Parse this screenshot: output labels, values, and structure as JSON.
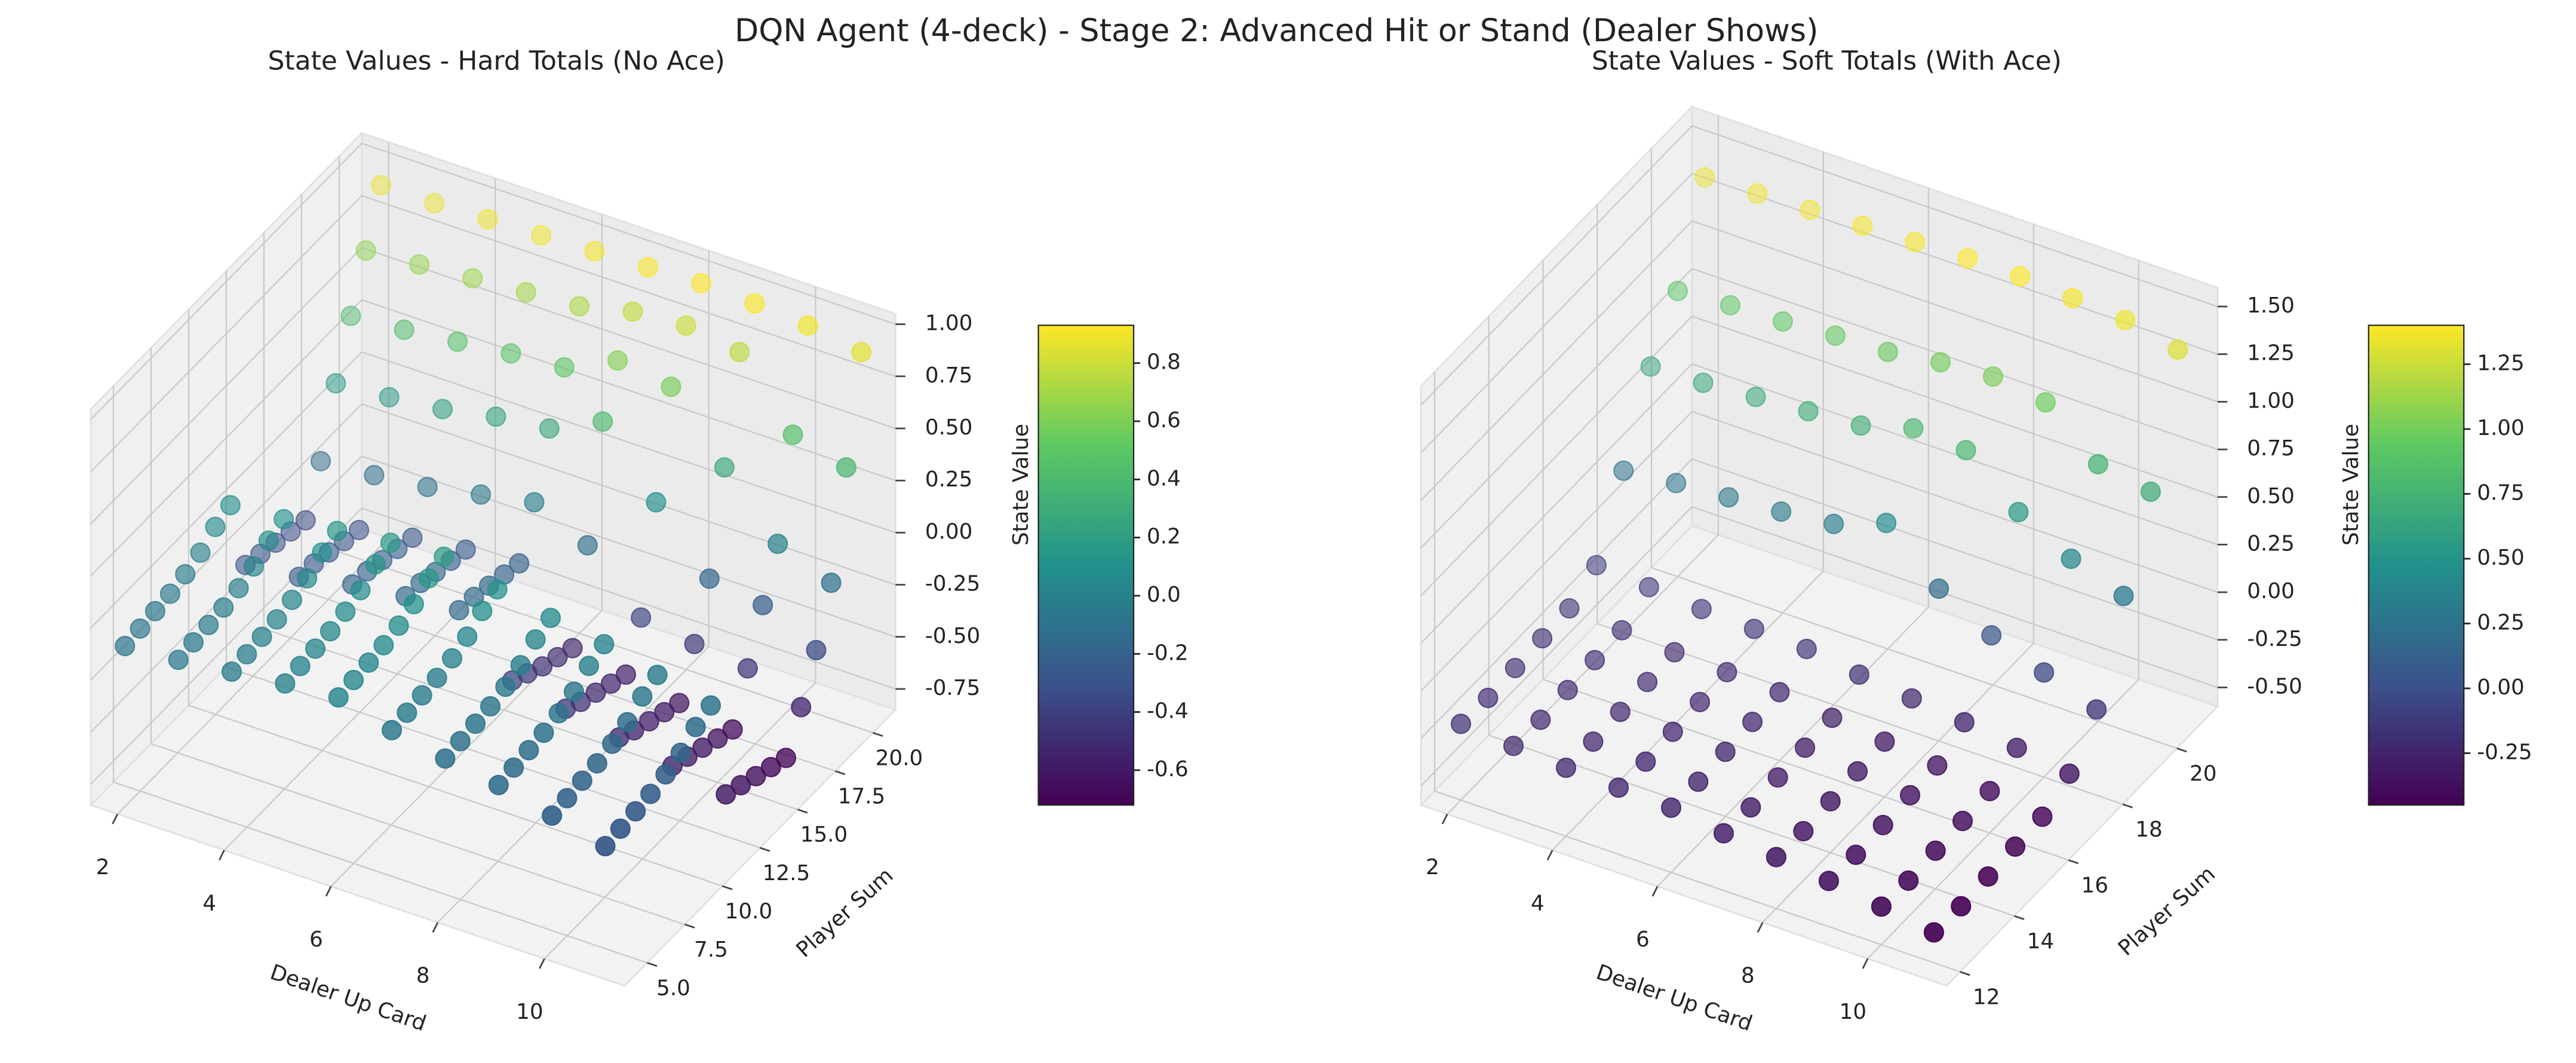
{
  "title": "DQN Agent (4-deck) - Stage 2: Advanced Hit or Stand (Dealer Shows)",
  "chart_data": [
    {
      "type": "scatter3d",
      "title": "State Values - Hard Totals (No Ace)",
      "xlabel": "Dealer Up Card",
      "ylabel": "Player Sum",
      "zlabel": "State Value",
      "colormap": "viridis",
      "clim": [
        -0.72,
        0.93
      ],
      "cticks": [
        -0.6,
        -0.4,
        -0.2,
        {
          "value": 0,
          "label": "0.0"
        },
        0.2,
        0.4,
        0.6,
        0.8
      ],
      "x": [
        2,
        3,
        4,
        5,
        6,
        7,
        8,
        9,
        10,
        11
      ],
      "y": [
        4,
        5,
        6,
        7,
        8,
        9,
        10,
        11,
        12,
        13,
        14,
        15,
        16,
        17,
        18,
        19,
        20,
        21
      ],
      "values": [
        [
          -0.08,
          -0.06,
          -0.03,
          0.0,
          0.02,
          -0.05,
          -0.1,
          -0.14,
          -0.2,
          -0.26
        ],
        [
          -0.07,
          -0.05,
          -0.02,
          0.01,
          0.03,
          -0.04,
          -0.09,
          -0.13,
          -0.19,
          -0.25
        ],
        [
          -0.06,
          -0.04,
          -0.01,
          0.02,
          0.04,
          -0.03,
          -0.08,
          -0.12,
          -0.18,
          -0.24
        ],
        [
          -0.05,
          -0.03,
          0.0,
          0.03,
          0.05,
          -0.02,
          -0.07,
          -0.11,
          -0.17,
          -0.23
        ],
        [
          -0.03,
          -0.01,
          0.02,
          0.05,
          0.07,
          0.0,
          -0.05,
          -0.09,
          -0.15,
          -0.21
        ],
        [
          0.0,
          0.02,
          0.05,
          0.08,
          0.1,
          0.03,
          -0.02,
          -0.06,
          -0.12,
          -0.18
        ],
        [
          0.05,
          0.07,
          0.1,
          0.13,
          0.15,
          0.08,
          0.03,
          -0.01,
          -0.07,
          -0.13
        ],
        [
          0.08,
          0.1,
          0.13,
          0.16,
          0.18,
          0.11,
          0.06,
          0.02,
          -0.04,
          -0.1
        ],
        [
          -0.28,
          -0.25,
          -0.2,
          -0.17,
          -0.15,
          -0.4,
          -0.45,
          -0.5,
          -0.55,
          -0.6
        ],
        [
          -0.3,
          -0.26,
          -0.21,
          -0.18,
          -0.16,
          -0.44,
          -0.49,
          -0.54,
          -0.58,
          -0.63
        ],
        [
          -0.32,
          -0.28,
          -0.23,
          -0.2,
          -0.18,
          -0.48,
          -0.52,
          -0.57,
          -0.61,
          -0.66
        ],
        [
          -0.34,
          -0.3,
          -0.25,
          -0.22,
          -0.2,
          -0.51,
          -0.55,
          -0.6,
          -0.64,
          -0.69
        ],
        [
          -0.36,
          -0.32,
          -0.27,
          -0.24,
          -0.22,
          -0.54,
          -0.58,
          -0.63,
          -0.67,
          -0.72
        ],
        [
          -0.15,
          -0.13,
          -0.1,
          -0.05,
          0.0,
          -0.12,
          -0.38,
          -0.42,
          -0.45,
          -0.55
        ],
        [
          0.15,
          0.17,
          0.2,
          0.25,
          0.28,
          0.4,
          0.1,
          -0.18,
          -0.22,
          -0.35
        ],
        [
          0.4,
          0.42,
          0.45,
          0.48,
          0.5,
          0.62,
          0.58,
          0.28,
          0.0,
          -0.1
        ],
        [
          0.64,
          0.66,
          0.68,
          0.7,
          0.72,
          0.78,
          0.8,
          0.76,
          0.45,
          0.38
        ],
        [
          0.88,
          0.88,
          0.89,
          0.9,
          0.91,
          0.92,
          0.93,
          0.92,
          0.9,
          0.86
        ]
      ],
      "xlim": [
        1.5,
        11.5
      ],
      "ylim": [
        3.5,
        21.5
      ],
      "zlim": [
        -0.85,
        1.05
      ],
      "xticks": [
        2,
        4,
        6,
        8,
        10
      ],
      "yticks": [
        {
          "value": 5,
          "label": "5.0"
        },
        7.5,
        {
          "value": 10,
          "label": "10.0"
        },
        12.5,
        {
          "value": 15,
          "label": "15.0"
        },
        17.5,
        {
          "value": 20,
          "label": "20.0"
        }
      ],
      "zticks": [
        -0.75,
        {
          "value": -0.5,
          "label": "-0.50"
        },
        -0.25,
        {
          "value": 0,
          "label": "0.00"
        },
        0.25,
        {
          "value": 0.5,
          "label": "0.50"
        },
        0.75,
        {
          "value": 1,
          "label": "1.00"
        }
      ],
      "grid": true
    },
    {
      "type": "scatter3d",
      "title": "State Values - Soft Totals (With Ace)",
      "xlabel": "Dealer Up Card",
      "ylabel": "Player Sum",
      "zlabel": "State Value",
      "colormap": "viridis",
      "clim": [
        -0.45,
        1.4
      ],
      "cticks": [
        -0.25,
        {
          "value": 0,
          "label": "0.00"
        },
        0.25,
        {
          "value": 0.5,
          "label": "0.50"
        },
        0.75,
        {
          "value": 1,
          "label": "1.00"
        },
        1.25
      ],
      "x": [
        2,
        3,
        4,
        5,
        6,
        7,
        8,
        9,
        10,
        11
      ],
      "y": [
        12,
        13,
        14,
        15,
        16,
        17,
        18,
        19,
        20,
        21
      ],
      "values": [
        [
          -0.2,
          -0.22,
          -0.24,
          -0.25,
          -0.26,
          -0.3,
          -0.33,
          -0.36,
          -0.4,
          -0.44
        ],
        [
          -0.21,
          -0.23,
          -0.25,
          -0.26,
          -0.27,
          -0.31,
          -0.34,
          -0.37,
          -0.41,
          -0.45
        ],
        [
          -0.2,
          -0.22,
          -0.24,
          -0.25,
          -0.26,
          -0.3,
          -0.33,
          -0.36,
          -0.4,
          -0.44
        ],
        [
          -0.19,
          -0.21,
          -0.23,
          -0.24,
          -0.25,
          -0.29,
          -0.32,
          -0.35,
          -0.39,
          -0.43
        ],
        [
          -0.18,
          -0.2,
          -0.22,
          -0.23,
          -0.24,
          -0.28,
          -0.31,
          -0.34,
          -0.38,
          -0.42
        ],
        [
          -0.1,
          -0.12,
          -0.14,
          -0.15,
          -0.16,
          -0.2,
          -0.23,
          -0.26,
          -0.3,
          -0.34
        ],
        [
          0.25,
          0.28,
          0.3,
          0.32,
          0.35,
          0.45,
          0.2,
          0.05,
          -0.05,
          -0.15
        ],
        [
          0.65,
          0.66,
          0.68,
          0.7,
          0.72,
          0.8,
          0.78,
          0.55,
          0.4,
          0.3
        ],
        [
          0.9,
          0.92,
          0.93,
          0.95,
          0.96,
          1.0,
          1.02,
          0.98,
          0.75,
          0.7
        ],
        [
          1.35,
          1.36,
          1.37,
          1.38,
          1.39,
          1.4,
          1.4,
          1.38,
          1.36,
          1.3
        ]
      ],
      "xlim": [
        1.5,
        11.5
      ],
      "ylim": [
        11.5,
        21.5
      ],
      "zlim": [
        -0.6,
        1.6
      ],
      "xticks": [
        2,
        4,
        6,
        8,
        10
      ],
      "yticks": [
        12,
        14,
        16,
        18,
        20
      ],
      "zticks": [
        {
          "value": -0.5,
          "label": "-0.50"
        },
        -0.25,
        {
          "value": 0,
          "label": "0.00"
        },
        0.25,
        {
          "value": 0.5,
          "label": "0.50"
        },
        0.75,
        {
          "value": 1,
          "label": "1.00"
        },
        1.25,
        {
          "value": 1.5,
          "label": "1.50"
        }
      ],
      "grid": true
    }
  ]
}
